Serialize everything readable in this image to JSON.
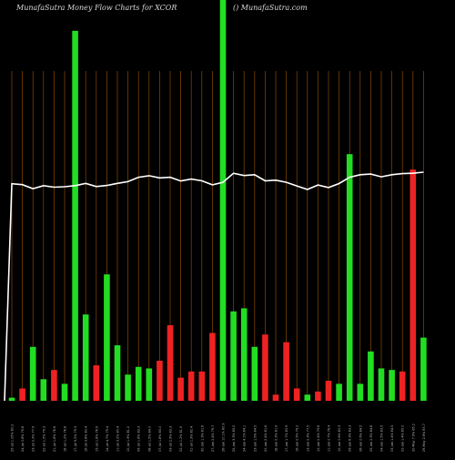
{
  "header": {
    "left": "MunafaSutra  Money Flow  Charts for XCOR",
    "right": "() MunafaSutra.com"
  },
  "chart_data": {
    "type": "bar",
    "title": "MunafaSutra  Money Flow  Charts for XCOR",
    "categories": [
      "25-Jul 1.05% 80.2",
      "24-Jul 0.8% 79.8",
      "23-Jul 2.3% 77.9",
      "22-Jul 1.5% 79.3",
      "21-Jul 1.8% 78.6",
      "18-Jul 1.2% 78.8",
      "17-Jul 9.2% 79.3",
      "16-Jul 3.8% 80.4",
      "15-Jul 1.8% 78.9",
      "14-Jul 4.7% 79.4",
      "11-Jul 3.2% 80.4",
      "10-Jul 1.3% 81.2",
      "09-Jul 1.6% 83.3",
      "08-Jul 1.5% 84.0",
      "07-Jul 1.8% 83.0",
      "03-Jul 2.9% 83.3",
      "02-Jul 1.2% 81.5",
      "01-Jul 1.3% 82.4",
      "30-Jun 1.3% 81.6",
      "27-Jun 2.4% 79.7",
      "26-Jun 10.1% 80.9",
      "25-Jun 3.3% 85.2",
      "24-Jun 4.1% 84.1",
      "23-Jun 1.6% 84.5",
      "20-Jun 2.4% 81.6",
      "18-Jun 0.3% 81.9",
      "17-Jun 1.7% 80.9",
      "16-Jun 0.5% 79.2",
      "13-Jun 0.3% 77.5",
      "12-Jun 0.4% 79.6",
      "11-Jun 0.7% 78.4",
      "10-Jun 0.6% 80.3",
      "09-Jun 6.3% 83.3",
      "06-Jun 0.6% 84.5",
      "05-Jun 2.3% 84.8",
      "04-Jun 1.5% 83.5",
      "03-Jun 1.4% 84.5",
      "02-Jun 1.4% 85.0",
      "30-May 7.9% 85.2",
      "29-May 2.6% 85.7"
    ],
    "values": [
      0.2,
      0.8,
      3.5,
      1.4,
      2.0,
      1.1,
      24.0,
      5.6,
      2.3,
      8.2,
      3.6,
      1.7,
      2.2,
      2.1,
      2.6,
      4.9,
      1.5,
      1.9,
      1.9,
      4.4,
      26.0,
      5.8,
      6.0,
      3.5,
      4.3,
      0.4,
      3.8,
      0.8,
      0.4,
      0.6,
      1.3,
      1.1,
      16.0,
      1.1,
      3.2,
      2.1,
      2.0,
      1.9,
      15.0,
      4.1
    ],
    "colors": [
      "#22dd22",
      "#ee2222",
      "#22dd22",
      "#22dd22",
      "#ee2222",
      "#22dd22",
      "#22dd22",
      "#22dd22",
      "#ee2222",
      "#22dd22",
      "#22dd22",
      "#22dd22",
      "#22dd22",
      "#22dd22",
      "#ee2222",
      "#ee2222",
      "#ee2222",
      "#ee2222",
      "#ee2222",
      "#ee2222",
      "#22dd22",
      "#22dd22",
      "#22dd22",
      "#22dd22",
      "#ee2222",
      "#ee2222",
      "#ee2222",
      "#ee2222",
      "#22dd22",
      "#ee2222",
      "#ee2222",
      "#22dd22",
      "#22dd22",
      "#22dd22",
      "#22dd22",
      "#22dd22",
      "#22dd22",
      "#ee2222",
      "#ee2222",
      "#22dd22"
    ],
    "ylim": [
      0,
      26
    ],
    "line": {
      "values": [
        80.2,
        79.8,
        77.9,
        79.3,
        78.6,
        78.8,
        79.3,
        80.4,
        78.9,
        79.4,
        80.4,
        81.2,
        83.3,
        84.0,
        83.0,
        83.3,
        81.5,
        82.4,
        81.6,
        79.7,
        80.9,
        85.2,
        84.1,
        84.5,
        81.6,
        81.9,
        80.9,
        79.2,
        77.5,
        79.6,
        78.4,
        80.3,
        83.3,
        84.5,
        84.8,
        83.5,
        84.5,
        85.0,
        85.2,
        85.7
      ],
      "color": "#ffffff"
    },
    "gridlines": true,
    "grid_color": "#8a4a00",
    "xlabel": "",
    "ylabel": ""
  }
}
